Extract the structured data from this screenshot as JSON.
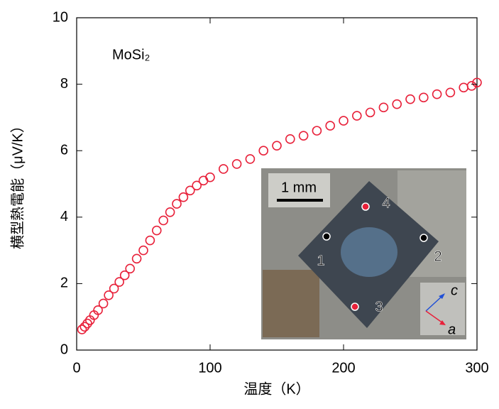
{
  "chart_data": {
    "type": "scatter",
    "annotation": "MoSi₂",
    "xlabel": "温度（K）",
    "ylabel": "横型熱電能（μV/K）",
    "x": [
      4,
      6,
      8,
      10,
      13,
      16,
      20,
      24,
      28,
      32,
      36,
      40,
      45,
      50,
      55,
      60,
      65,
      70,
      75,
      80,
      85,
      90,
      95,
      100,
      110,
      120,
      130,
      140,
      150,
      160,
      170,
      180,
      190,
      200,
      210,
      220,
      230,
      240,
      250,
      260,
      270,
      280,
      290,
      296,
      300
    ],
    "series": [
      {
        "color": "#e8213a",
        "values": [
          0.62,
          0.7,
          0.8,
          0.9,
          1.05,
          1.2,
          1.4,
          1.65,
          1.85,
          2.05,
          2.25,
          2.45,
          2.75,
          3.0,
          3.3,
          3.6,
          3.9,
          4.15,
          4.4,
          4.6,
          4.8,
          4.95,
          5.1,
          5.2,
          5.45,
          5.6,
          5.75,
          6.0,
          6.15,
          6.35,
          6.45,
          6.6,
          6.75,
          6.9,
          7.05,
          7.15,
          7.3,
          7.4,
          7.55,
          7.6,
          7.7,
          7.75,
          7.9,
          7.95,
          8.05
        ]
      }
    ],
    "xlim": [
      0,
      300
    ],
    "xticks": [
      0,
      100,
      200,
      300
    ],
    "ylim": [
      0,
      10
    ],
    "yticks": [
      0,
      2,
      4,
      6,
      8,
      10
    ],
    "inset": {
      "scale_label": "1 mm",
      "spots": [
        "1",
        "2",
        "3",
        "4"
      ],
      "axes": [
        "c",
        "a"
      ]
    }
  }
}
